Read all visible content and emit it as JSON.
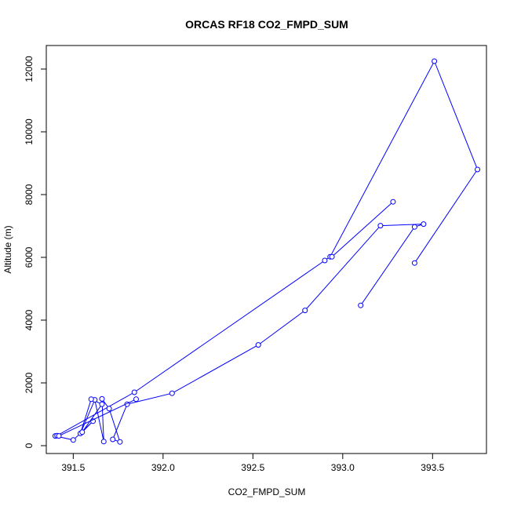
{
  "chart_data": {
    "type": "line",
    "title": "ORCAS RF18 CO2_FMPD_SUM",
    "xlabel": "CO2_FMPD_SUM",
    "ylabel": "Altitude (m)",
    "xlim": [
      391.35,
      393.8
    ],
    "ylim": [
      -250,
      12750
    ],
    "x_ticks": [
      391.5,
      392.0,
      392.5,
      393.0,
      393.5
    ],
    "x_tick_labels": [
      "391.5",
      "392.0",
      "392.5",
      "393.0",
      "393.5"
    ],
    "y_ticks": [
      0,
      2000,
      4000,
      6000,
      8000,
      10000,
      12000
    ],
    "y_tick_labels": [
      "0",
      "2000",
      "4000",
      "6000",
      "8000",
      "10000",
      "12000"
    ],
    "grid": false,
    "series": [
      {
        "color": "#0000ff",
        "marker": "open-circle",
        "x": [
          393.1,
          393.4,
          393.45,
          393.21,
          392.79,
          392.53,
          392.05,
          391.8,
          391.72,
          391.76,
          391.7,
          391.66,
          391.67,
          391.62,
          391.54,
          391.6,
          391.66,
          391.55,
          391.61,
          391.5,
          391.4,
          391.41,
          391.84,
          392.9,
          392.93,
          393.51,
          393.75,
          393.4
        ],
        "y": [
          4470,
          6970,
          7060,
          7010,
          4310,
          3210,
          1670,
          1320,
          200,
          120,
          1180,
          1490,
          130,
          1460,
          390,
          1480,
          1320,
          430,
          780,
          180,
          310,
          320,
          1700,
          5900,
          6020,
          12250,
          8800,
          5820
        ]
      },
      {
        "color": "#0000ff",
        "marker": "open-circle",
        "x": [
          391.42,
          391.85
        ],
        "y": [
          310,
          1480
        ]
      },
      {
        "color": "#0000ff",
        "marker": "open-circle",
        "x": [
          392.94,
          393.28
        ],
        "y": [
          6020,
          7770
        ]
      }
    ]
  }
}
